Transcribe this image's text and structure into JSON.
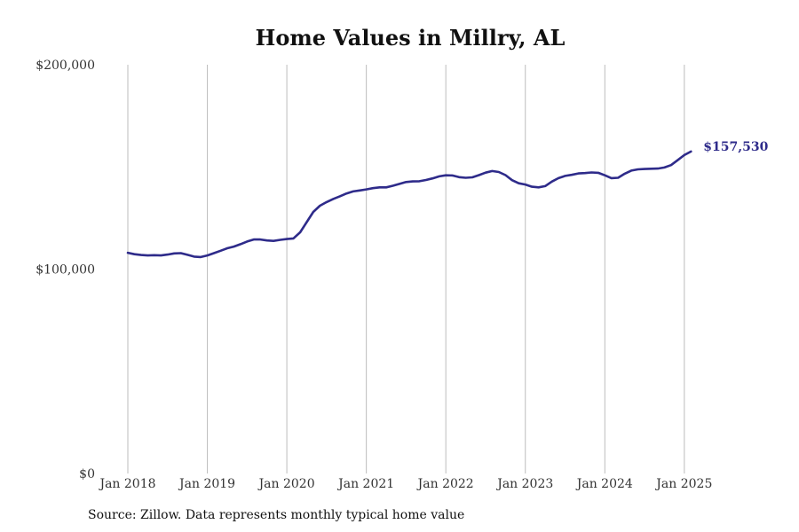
{
  "chart_data": {
    "type": "line",
    "title": "Home Values in Millry, AL",
    "xlabel": "",
    "ylabel": "",
    "ylim": [
      0,
      200000
    ],
    "y_ticks": [
      {
        "value": 0,
        "label": "$0"
      },
      {
        "value": 100000,
        "label": "$100,000"
      },
      {
        "value": 200000,
        "label": "$200,000"
      }
    ],
    "x_ticks": [
      {
        "value": 2018.0,
        "label": "Jan 2018"
      },
      {
        "value": 2019.0,
        "label": "Jan 2019"
      },
      {
        "value": 2020.0,
        "label": "Jan 2020"
      },
      {
        "value": 2021.0,
        "label": "Jan 2021"
      },
      {
        "value": 2022.0,
        "label": "Jan 2022"
      },
      {
        "value": 2023.0,
        "label": "Jan 2023"
      },
      {
        "value": 2024.0,
        "label": "Jan 2024"
      },
      {
        "value": 2025.0,
        "label": "Jan 2025"
      }
    ],
    "xlim": [
      2018.0,
      2025.08
    ],
    "grid": "vertical",
    "line_color": "#2e2b8a",
    "end_label": "$157,530",
    "series": [
      {
        "x": [
          2018.0,
          2018.083,
          2018.167,
          2018.25,
          2018.333,
          2018.417,
          2018.5,
          2018.583,
          2018.667,
          2018.75,
          2018.833,
          2018.917,
          2019.0,
          2019.083,
          2019.167,
          2019.25,
          2019.333,
          2019.417,
          2019.5,
          2019.583,
          2019.667,
          2019.75,
          2019.833,
          2019.917,
          2020.0,
          2020.083,
          2020.167,
          2020.25,
          2020.333,
          2020.417,
          2020.5,
          2020.583,
          2020.667,
          2020.75,
          2020.833,
          2020.917,
          2021.0,
          2021.083,
          2021.167,
          2021.25,
          2021.333,
          2021.417,
          2021.5,
          2021.583,
          2021.667,
          2021.75,
          2021.833,
          2021.917,
          2022.0,
          2022.083,
          2022.167,
          2022.25,
          2022.333,
          2022.417,
          2022.5,
          2022.583,
          2022.667,
          2022.75,
          2022.833,
          2022.917,
          2023.0,
          2023.083,
          2023.167,
          2023.25,
          2023.333,
          2023.417,
          2023.5,
          2023.583,
          2023.667,
          2023.75,
          2023.833,
          2023.917,
          2024.0,
          2024.083,
          2024.167,
          2024.25,
          2024.333,
          2024.417,
          2024.5,
          2024.583,
          2024.667,
          2024.75,
          2024.833,
          2024.917,
          2025.0,
          2025.083
        ],
        "values": [
          108000,
          107300,
          106900,
          106700,
          106800,
          106700,
          107100,
          107700,
          107800,
          107000,
          106100,
          105900,
          106700,
          107800,
          109000,
          110200,
          111000,
          112200,
          113500,
          114500,
          114500,
          114000,
          113800,
          114300,
          114700,
          115000,
          118000,
          123000,
          128000,
          131000,
          132800,
          134300,
          135600,
          137000,
          138000,
          138500,
          139000,
          139600,
          140000,
          140000,
          140800,
          141700,
          142600,
          142900,
          143000,
          143600,
          144400,
          145400,
          145900,
          145800,
          145000,
          144700,
          144900,
          146000,
          147200,
          148000,
          147500,
          146000,
          143500,
          142000,
          141400,
          140300,
          140000,
          140600,
          142800,
          144500,
          145600,
          146100,
          146800,
          147000,
          147300,
          147100,
          145900,
          144500,
          144700,
          146700,
          148200,
          148800,
          149000,
          149100,
          149200,
          149700,
          150900,
          153300,
          155800,
          157530
        ]
      }
    ]
  },
  "footer": {
    "source": "Source: Zillow. Data represents monthly typical home value"
  }
}
